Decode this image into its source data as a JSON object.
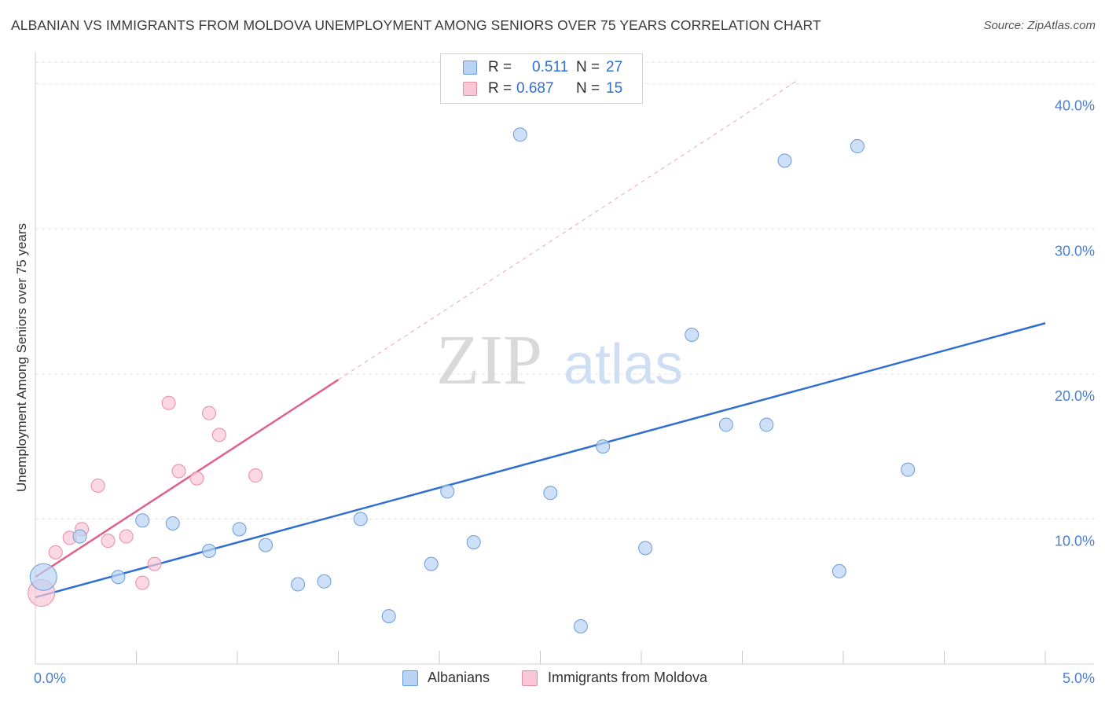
{
  "title": "ALBANIAN VS IMMIGRANTS FROM MOLDOVA UNEMPLOYMENT AMONG SENIORS OVER 75 YEARS CORRELATION CHART",
  "source": "Source: ZipAtlas.com",
  "watermark": {
    "zip": "ZIP",
    "atlas": "atlas"
  },
  "legend_top": {
    "albanians": {
      "r_label": "R =",
      "r_value": "0.511",
      "n_label": "N =",
      "n_value": "27"
    },
    "moldova": {
      "r_label": "R =",
      "r_value": "0.687",
      "n_label": "N =",
      "n_value": "15"
    }
  },
  "legend_bottom": {
    "albanians": "Albanians",
    "moldova": "Immigrants from Moldova"
  },
  "colors": {
    "albanians_fill": "#b9d3f3",
    "albanians_stroke": "#6b9bd8",
    "albanians_line": "#2f6fd0",
    "moldova_fill": "#f9c8d6",
    "moldova_stroke": "#e88aa6",
    "moldova_line": "#e0608a",
    "tick": "#4a7fd1",
    "grid": "#e3e3e3"
  },
  "chart_data": {
    "type": "scatter",
    "title": "ALBANIAN VS IMMIGRANTS FROM MOLDOVA UNEMPLOYMENT AMONG SENIORS OVER 75 YEARS CORRELATION CHART",
    "xlabel": "",
    "ylabel": "Unemployment Among Seniors over 75 years",
    "xlim": [
      0,
      5
    ],
    "ylim": [
      0,
      41.5
    ],
    "x_tick_labels": [
      {
        "value": 0,
        "label": "0.0%"
      },
      {
        "value": 5,
        "label": "5.0%"
      }
    ],
    "y_tick_labels": [
      {
        "value": 10,
        "label": "10.0%"
      },
      {
        "value": 20,
        "label": "20.0%"
      },
      {
        "value": 30,
        "label": "30.0%"
      },
      {
        "value": 40,
        "label": "40.0%"
      }
    ],
    "series": [
      {
        "name": "Albanians",
        "r": 0.511,
        "n": 27,
        "points": [
          {
            "x": 0.04,
            "y": 6.0,
            "big": true
          },
          {
            "x": 0.22,
            "y": 8.8
          },
          {
            "x": 0.41,
            "y": 6.0
          },
          {
            "x": 0.53,
            "y": 9.9
          },
          {
            "x": 0.68,
            "y": 9.7
          },
          {
            "x": 0.86,
            "y": 7.8
          },
          {
            "x": 1.01,
            "y": 9.3
          },
          {
            "x": 1.14,
            "y": 8.2
          },
          {
            "x": 1.3,
            "y": 5.5
          },
          {
            "x": 1.43,
            "y": 5.7
          },
          {
            "x": 1.61,
            "y": 10.0
          },
          {
            "x": 1.75,
            "y": 3.3
          },
          {
            "x": 1.96,
            "y": 6.9
          },
          {
            "x": 2.04,
            "y": 11.9
          },
          {
            "x": 2.17,
            "y": 8.4
          },
          {
            "x": 2.4,
            "y": 36.5
          },
          {
            "x": 2.55,
            "y": 11.8
          },
          {
            "x": 2.7,
            "y": 2.6
          },
          {
            "x": 2.81,
            "y": 15.0
          },
          {
            "x": 3.02,
            "y": 8.0
          },
          {
            "x": 3.25,
            "y": 22.7
          },
          {
            "x": 3.42,
            "y": 16.5
          },
          {
            "x": 3.62,
            "y": 16.5
          },
          {
            "x": 3.71,
            "y": 34.7
          },
          {
            "x": 3.98,
            "y": 6.4
          },
          {
            "x": 4.07,
            "y": 35.7
          },
          {
            "x": 4.32,
            "y": 13.4
          }
        ],
        "trend": {
          "x0": 0,
          "y0": 4.6,
          "x1": 5,
          "y1": 23.5
        }
      },
      {
        "name": "Immigrants from Moldova",
        "r": 0.687,
        "n": 15,
        "points": [
          {
            "x": 0.03,
            "y": 4.9,
            "big": true
          },
          {
            "x": 0.1,
            "y": 7.7
          },
          {
            "x": 0.17,
            "y": 8.7
          },
          {
            "x": 0.23,
            "y": 9.3
          },
          {
            "x": 0.31,
            "y": 12.3
          },
          {
            "x": 0.36,
            "y": 8.5
          },
          {
            "x": 0.45,
            "y": 8.8
          },
          {
            "x": 0.59,
            "y": 6.9
          },
          {
            "x": 0.53,
            "y": 5.6
          },
          {
            "x": 0.66,
            "y": 18.0
          },
          {
            "x": 0.71,
            "y": 13.3
          },
          {
            "x": 0.8,
            "y": 12.8
          },
          {
            "x": 0.86,
            "y": 17.3
          },
          {
            "x": 0.91,
            "y": 15.8
          },
          {
            "x": 1.09,
            "y": 13.0
          }
        ],
        "trend": {
          "x0": 0,
          "y0": 6.0,
          "x1": 1.5,
          "y1": 19.6
        },
        "trend_extended": {
          "x0": 1.5,
          "y0": 19.6,
          "x1": 3.78,
          "y1": 40.3
        }
      }
    ]
  }
}
